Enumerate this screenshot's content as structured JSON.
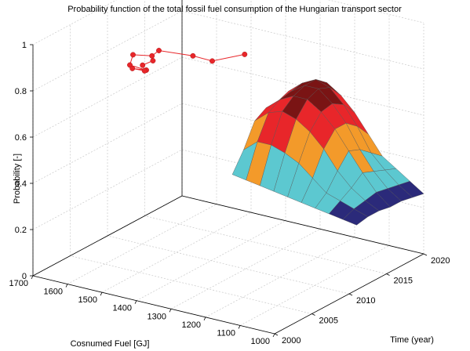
{
  "chart_data": {
    "type": "surface3d",
    "title": "Probability function of the total fossil fuel consumption of the Hungarian transport sector",
    "xlabel": "Cosnumed Fuel [GJ]",
    "ylabel": "Time (year)",
    "zlabel": "Probability [-]",
    "x_ticks": [
      "1000",
      "1100",
      "1200",
      "1300",
      "1400",
      "1500",
      "1600",
      "1700"
    ],
    "y_ticks": [
      "2000",
      "2005",
      "2010",
      "2015",
      "2020"
    ],
    "z_ticks": [
      "0",
      "0.2",
      "0.4",
      "0.6",
      "0.8",
      "1"
    ],
    "xlim": [
      1000,
      1700
    ],
    "ylim": [
      2000,
      2020
    ],
    "zlim": [
      0,
      1
    ],
    "grid": true,
    "colormap": [
      "#2b2a7a",
      "#5cc8d0",
      "#f39a2a",
      "#e8262a",
      "#7a1414"
    ],
    "series": [
      {
        "type": "line",
        "color": "#e8262a",
        "points": [
          {
            "fuel": 1240,
            "year": 2007.1,
            "p": 1
          },
          {
            "fuel": 1280,
            "year": 2004.6,
            "p": 1
          },
          {
            "fuel": 1338,
            "year": 2004.7,
            "p": 1
          },
          {
            "fuel": 1426,
            "year": 2004.2,
            "p": 1
          },
          {
            "fuel": 1420,
            "year": 2003.0,
            "p": 1
          },
          {
            "fuel": 1462,
            "year": 2002.4,
            "p": 1
          },
          {
            "fuel": 1430,
            "year": 2000.5,
            "p": 1
          },
          {
            "fuel": 1378,
            "year": 2000.3,
            "p": 1
          },
          {
            "fuel": 1412,
            "year": 2000.0,
            "p": 1
          },
          {
            "fuel": 1379,
            "year": 2000.1,
            "p": 1
          },
          {
            "fuel": 1404,
            "year": 2001.0,
            "p": 1
          },
          {
            "fuel": 1400,
            "year": 2002.2,
            "p": 1
          }
        ]
      }
    ]
  }
}
